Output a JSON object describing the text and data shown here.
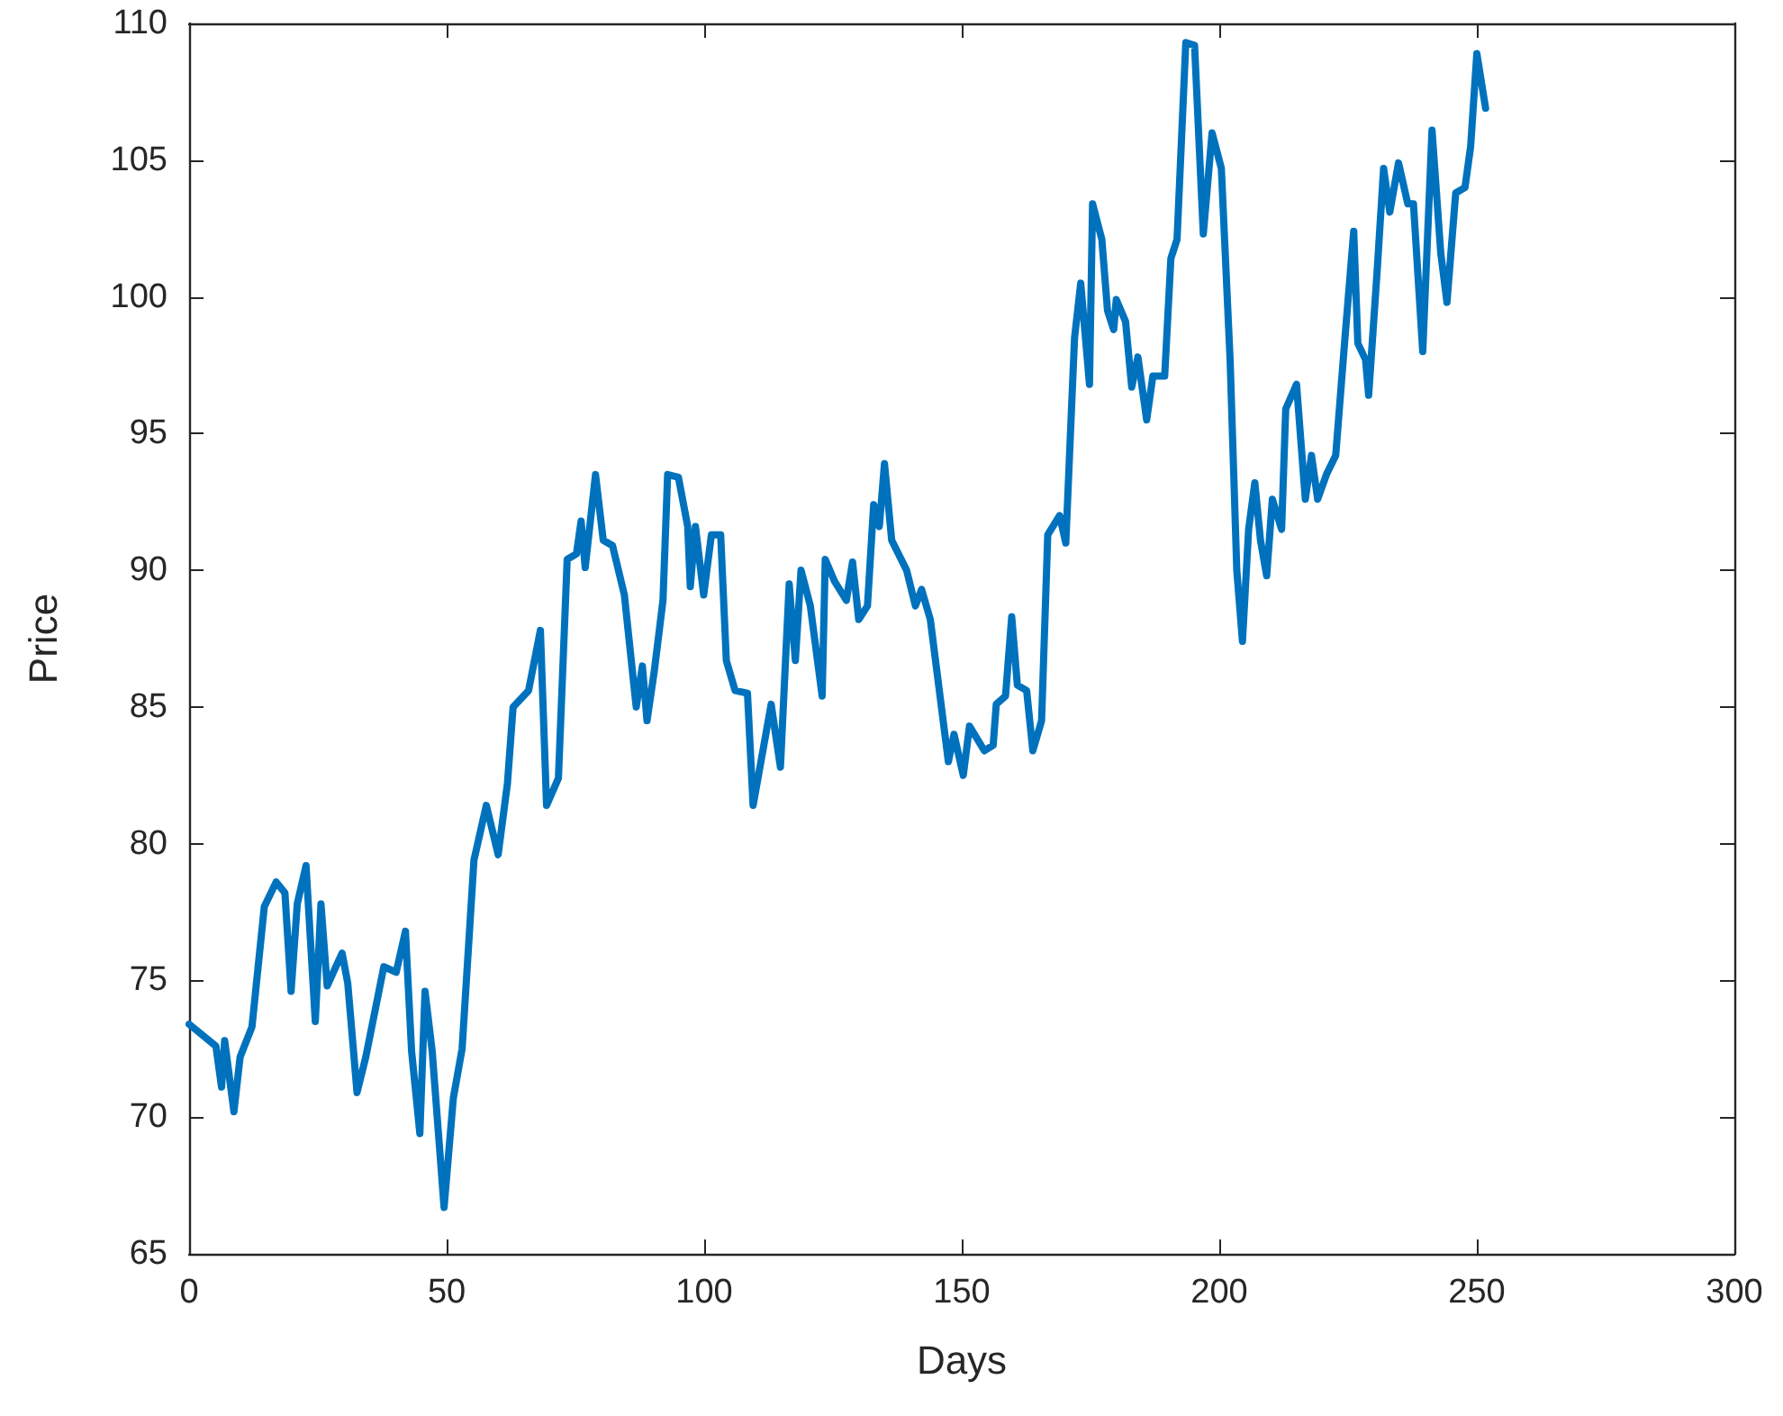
{
  "chart_data": {
    "type": "line",
    "xlabel": "Days",
    "ylabel": "Price",
    "xlim": [
      0,
      300
    ],
    "xticks": [
      0,
      50,
      100,
      150,
      200,
      250,
      300
    ],
    "ylim": [
      65,
      110
    ],
    "yticks": [
      65,
      70,
      75,
      80,
      85,
      90,
      95,
      100,
      105,
      110
    ],
    "grid": false,
    "marker": "none",
    "line_style": "solid",
    "series": [
      {
        "color": "#0072bd",
        "x": [
          0,
          5.2,
          6.3,
          6.9,
          8.7,
          9.9,
          12.2,
          14.6,
          16.9,
          18.6,
          19.8,
          21,
          22.7,
          24.5,
          25.6,
          26.8,
          29.7,
          30.8,
          32.6,
          34.3,
          37.8,
          40.2,
          42,
          43.2,
          44.8,
          45.8,
          47.2,
          49.5,
          51.3,
          53,
          55.3,
          57.7,
          60,
          61.8,
          62.9,
          65.9,
          68.2,
          69.4,
          71.7,
          73.4,
          75.2,
          76.1,
          76.9,
          78.9,
          80.4,
          82.2,
          84.5,
          86.8,
          88,
          88.9,
          90.3,
          92,
          92.9,
          95,
          96.8,
          97.3,
          98.3,
          99.9,
          101.4,
          103.2,
          104.3,
          106,
          108.4,
          109.5,
          113,
          114.8,
          116.5,
          117.7,
          118.8,
          120.6,
          122.9,
          123.5,
          125.3,
          127.6,
          128.8,
          130,
          131.7,
          132.9,
          134,
          135,
          136.4,
          139.3,
          141,
          142.2,
          143.9,
          147.4,
          148.5,
          150.3,
          151.5,
          154.4,
          156.1,
          156.7,
          158.5,
          159.7,
          160.8,
          162.6,
          163.8,
          165.5,
          166.7,
          169,
          170.2,
          171.9,
          173.1,
          174.8,
          175.4,
          177.2,
          178.3,
          179.5,
          180,
          181.8,
          183,
          184.2,
          185.9,
          187.1,
          189.4,
          190.6,
          191.8,
          193.5,
          195.2,
          196.9,
          198.6,
          200.4,
          202.1,
          203.4,
          204.5,
          205.7,
          206.9,
          208,
          209.2,
          210.3,
          212.1,
          212.9,
          215,
          216.7,
          217.9,
          219.1,
          220.8,
          222.6,
          224.4,
          226.1,
          226.9,
          228.4,
          229,
          230.7,
          231.9,
          233.1,
          234.8,
          236.6,
          237.7,
          239.5,
          241.3,
          243,
          244.2,
          245.9,
          247.7,
          248.8,
          250,
          251.7
        ],
        "values": [
          73.4,
          72.6,
          71.1,
          72.8,
          70.2,
          72.2,
          73.3,
          77.7,
          78.6,
          78.2,
          74.6,
          77.8,
          79.2,
          73.5,
          77.8,
          74.8,
          76,
          74.9,
          70.9,
          72.2,
          75.5,
          75.3,
          76.8,
          72.4,
          69.4,
          74.6,
          72.4,
          66.7,
          70.7,
          72.5,
          79.4,
          81.4,
          79.6,
          82.2,
          85,
          85.6,
          87.8,
          81.4,
          82.4,
          90.4,
          90.6,
          91.8,
          90.1,
          93.5,
          91.1,
          90.9,
          89.1,
          85,
          86.5,
          84.5,
          86.3,
          88.9,
          93.5,
          93.4,
          91.6,
          89.4,
          91.6,
          89.1,
          91.3,
          91.3,
          86.7,
          85.6,
          85.5,
          81.4,
          85.1,
          82.8,
          89.5,
          86.7,
          90,
          88.7,
          85.4,
          90.4,
          89.6,
          88.9,
          90.3,
          88.2,
          88.7,
          92.4,
          91.6,
          93.9,
          91.1,
          90,
          88.7,
          89.3,
          88.2,
          83,
          84,
          82.5,
          84.3,
          83.4,
          83.6,
          85.1,
          85.4,
          88.3,
          85.8,
          85.6,
          83.4,
          84.5,
          91.3,
          92,
          91,
          98.5,
          100.5,
          96.8,
          103.4,
          102.1,
          99.5,
          98.8,
          99.9,
          99.1,
          96.7,
          97.8,
          95.5,
          97.1,
          97.1,
          101.4,
          102.1,
          109.3,
          109.2,
          102.3,
          106,
          104.7,
          97.7,
          90,
          87.4,
          91.5,
          93.2,
          91.1,
          89.8,
          92.6,
          91.5,
          95.9,
          96.8,
          92.6,
          94.2,
          92.6,
          93.5,
          94.2,
          98.5,
          102.4,
          98.3,
          97.7,
          96.4,
          101.1,
          104.7,
          103.1,
          104.9,
          103.4,
          103.4,
          98,
          106.1,
          101.6,
          99.8,
          103.8,
          104,
          105.5,
          108.9,
          106.9
        ]
      }
    ]
  }
}
